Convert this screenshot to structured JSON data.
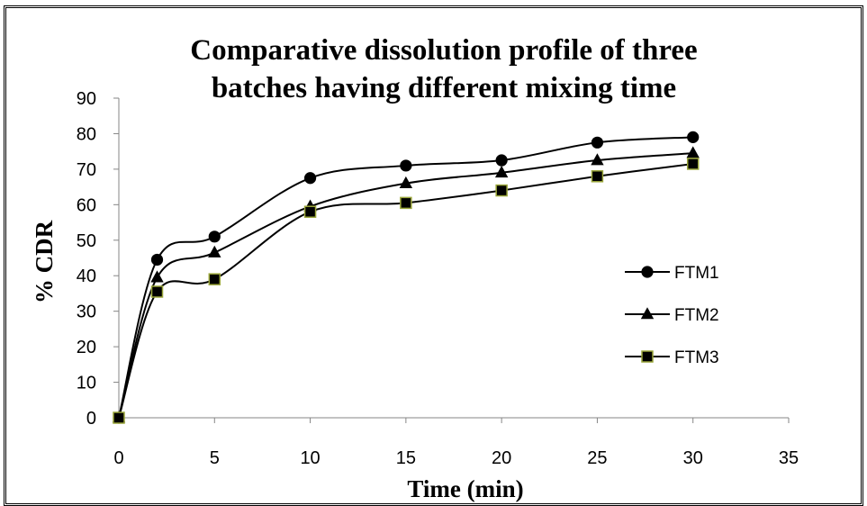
{
  "chart_data": {
    "type": "line",
    "title_lines": [
      "Comparative dissolution profile of three",
      "batches having different mixing time"
    ],
    "xlabel": "Time (min)",
    "ylabel": "% CDR",
    "xlim": [
      0,
      35
    ],
    "ylim": [
      0,
      90
    ],
    "x_ticks": [
      0,
      5,
      10,
      15,
      20,
      25,
      30,
      35
    ],
    "y_ticks": [
      0,
      10,
      20,
      30,
      40,
      50,
      60,
      70,
      80,
      90
    ],
    "grid": false,
    "smooth": true,
    "legend_position": "right",
    "x": [
      0,
      2,
      5,
      10,
      15,
      20,
      25,
      30
    ],
    "series": [
      {
        "name": "FTM1",
        "marker": "circle",
        "color": "#000000",
        "marker_fill": "#000000",
        "values": [
          0,
          44.5,
          51,
          67.5,
          71,
          72.5,
          77.5,
          79
        ]
      },
      {
        "name": "FTM2",
        "marker": "triangle",
        "color": "#000000",
        "marker_fill": "#000000",
        "values": [
          0,
          39.5,
          46.5,
          59.5,
          66,
          69,
          72.5,
          74.5
        ]
      },
      {
        "name": "FTM3",
        "marker": "square",
        "color": "#000000",
        "marker_fill": "#000000",
        "marker_stroke": "#9aa63a",
        "values": [
          0,
          35.5,
          39,
          58,
          60.5,
          64,
          68,
          71.5
        ]
      }
    ]
  }
}
